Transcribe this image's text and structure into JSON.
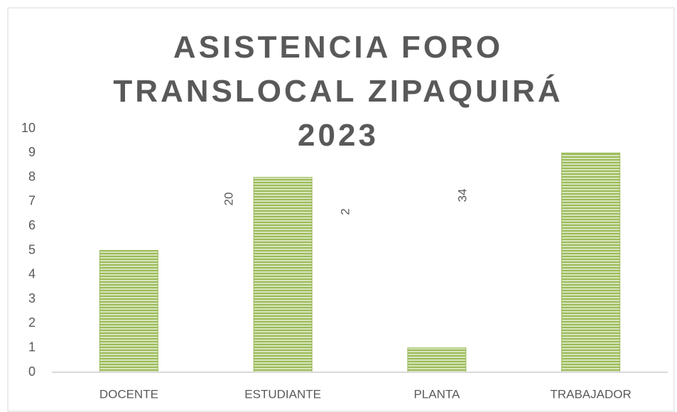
{
  "chart_data": {
    "type": "bar",
    "title": "ASISTENCIA FORO TRANSLOCAL ZIPAQUIRÁ 2023",
    "categories": [
      "DOCENTE",
      "ESTUDIANTE",
      "PLANTA",
      "TRABAJADOR"
    ],
    "values": [
      5,
      8,
      1,
      9
    ],
    "color": "#9bbb59",
    "ylim": [
      0,
      10
    ],
    "yticks": [
      0,
      1,
      2,
      3,
      4,
      5,
      6,
      7,
      8,
      9,
      10
    ],
    "grid": false,
    "annotations": [
      "20",
      "2",
      "34"
    ]
  }
}
